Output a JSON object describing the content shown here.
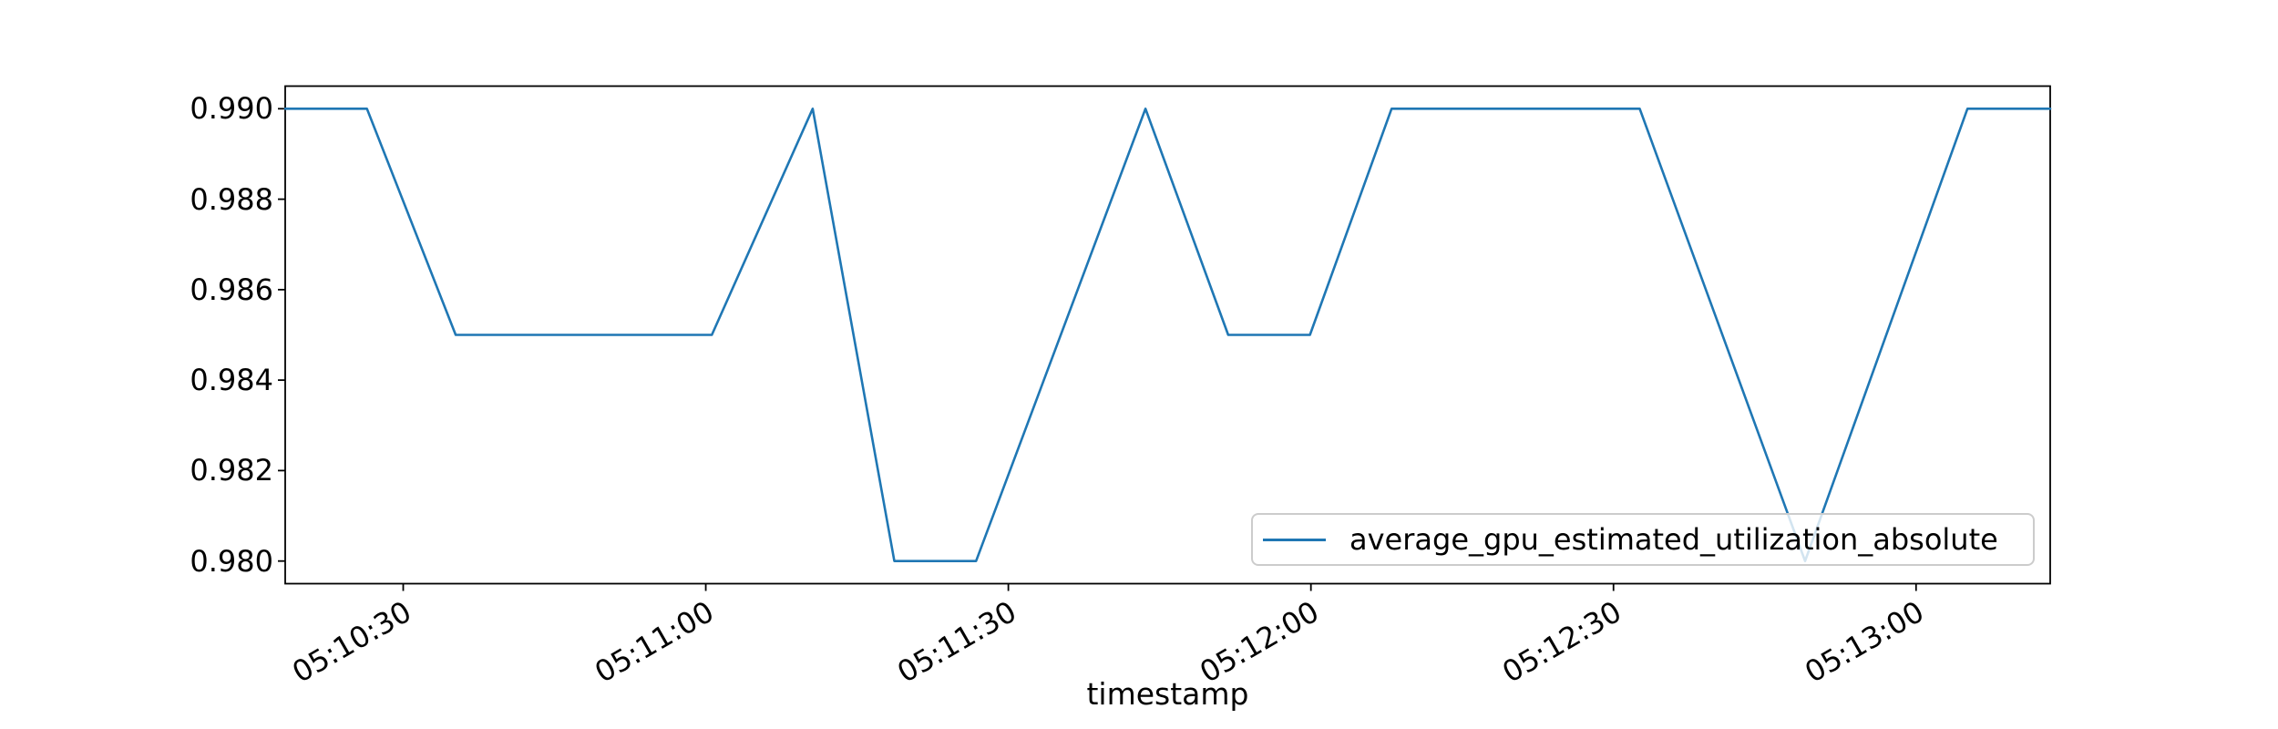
{
  "figure": {
    "xlabel": "timestamp",
    "legend_label": "average_gpu_estimated_utilization_absolute"
  },
  "chart_data": {
    "type": "line",
    "title": "",
    "xlabel": "timestamp",
    "ylabel": "",
    "grid": false,
    "legend": {
      "entries": [
        "average_gpu_estimated_utilization_absolute"
      ],
      "position": "lower right"
    },
    "line_color": "#1f77b4",
    "axis_color": "#000000",
    "xlim_seconds": [
      18618.3,
      18793.3
    ],
    "ylim": [
      0.9795,
      0.9905
    ],
    "x_ticks": [
      {
        "seconds": 18630,
        "label": "05:10:30"
      },
      {
        "seconds": 18660,
        "label": "05:11:00"
      },
      {
        "seconds": 18690,
        "label": "05:11:30"
      },
      {
        "seconds": 18720,
        "label": "05:12:00"
      },
      {
        "seconds": 18750,
        "label": "05:12:30"
      },
      {
        "seconds": 18780,
        "label": "05:13:00"
      }
    ],
    "y_ticks": [
      {
        "value": 0.98,
        "label": "0.980"
      },
      {
        "value": 0.982,
        "label": "0.982"
      },
      {
        "value": 0.984,
        "label": "0.984"
      },
      {
        "value": 0.986,
        "label": "0.986"
      },
      {
        "value": 0.988,
        "label": "0.988"
      },
      {
        "value": 0.99,
        "label": "0.990"
      }
    ],
    "series": [
      {
        "name": "average_gpu_estimated_utilization_absolute",
        "points": [
          {
            "time": "05:10:18",
            "seconds": 18618.3,
            "value": 0.99
          },
          {
            "time": "05:10:26",
            "seconds": 18626.4,
            "value": 0.99
          },
          {
            "time": "05:10:35",
            "seconds": 18635.2,
            "value": 0.985
          },
          {
            "time": "05:11:01",
            "seconds": 18660.6,
            "value": 0.985
          },
          {
            "time": "05:11:11",
            "seconds": 18670.6,
            "value": 0.99
          },
          {
            "time": "05:11:19",
            "seconds": 18678.7,
            "value": 0.98
          },
          {
            "time": "05:11:27",
            "seconds": 18686.8,
            "value": 0.98
          },
          {
            "time": "05:11:44",
            "seconds": 18703.6,
            "value": 0.99
          },
          {
            "time": "05:11:52",
            "seconds": 18711.8,
            "value": 0.985
          },
          {
            "time": "05:12:00",
            "seconds": 18719.9,
            "value": 0.985
          },
          {
            "time": "05:12:08",
            "seconds": 18728.0,
            "value": 0.99
          },
          {
            "time": "05:12:33",
            "seconds": 18752.6,
            "value": 0.99
          },
          {
            "time": "05:12:49",
            "seconds": 18769.0,
            "value": 0.98
          },
          {
            "time": "05:13:05",
            "seconds": 18785.1,
            "value": 0.99
          },
          {
            "time": "05:13:13",
            "seconds": 18793.3,
            "value": 0.99
          }
        ]
      }
    ]
  }
}
